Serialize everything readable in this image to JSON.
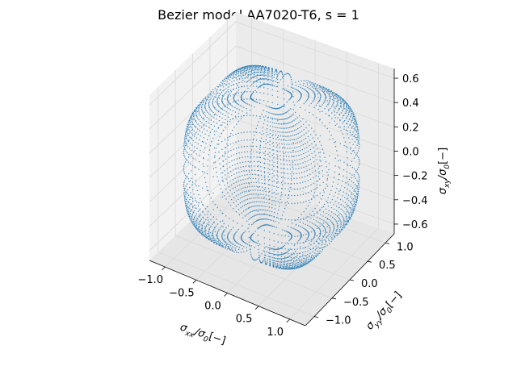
{
  "chart_data": {
    "type": "scatter",
    "projection": "3d",
    "title": "Bezier model AA7020-T6, s = 1",
    "axes": {
      "x": {
        "label_parts": [
          "σ",
          "xx",
          "/σ",
          "0",
          "[−]"
        ],
        "ticks": [
          "−1.0",
          "−0.5",
          "0.0",
          "0.5",
          "1.0"
        ],
        "tick_values": [
          -1.0,
          -0.5,
          0.0,
          0.5,
          1.0
        ],
        "range": [
          -1.25,
          1.25
        ]
      },
      "y": {
        "label_parts": [
          "σ",
          "yy",
          "/σ",
          "0",
          "[−]"
        ],
        "ticks": [
          "−1.0",
          "−0.5",
          "0.0",
          "0.5",
          "1.0"
        ],
        "tick_values": [
          -1.0,
          -0.5,
          0.0,
          0.5,
          1.0
        ],
        "range": [
          -1.25,
          1.25
        ]
      },
      "z": {
        "label_parts": [
          "σ",
          "xy",
          "/σ",
          "0",
          "[−]"
        ],
        "ticks": [
          "−0.6",
          "−0.4",
          "−0.2",
          "0.0",
          "0.2",
          "0.4",
          "0.6"
        ],
        "tick_values": [
          -0.6,
          -0.4,
          -0.2,
          0.0,
          0.2,
          0.4,
          0.6
        ],
        "range": [
          -0.68,
          0.68
        ]
      }
    },
    "surface": {
      "description_free": true,
      "sxx_max": 1.06,
      "syy_max": 1.02,
      "sxy_max": 0.58,
      "marker_color": "#1f77b4"
    },
    "grid": true,
    "legend": "none"
  },
  "colors": {
    "pane_left": "#f2f2f2",
    "pane_right": "#ebebeb",
    "pane_floor": "#e6e6e6",
    "grid": "#d9d9d9",
    "axis": "#000000",
    "series": "#1f77b4"
  }
}
